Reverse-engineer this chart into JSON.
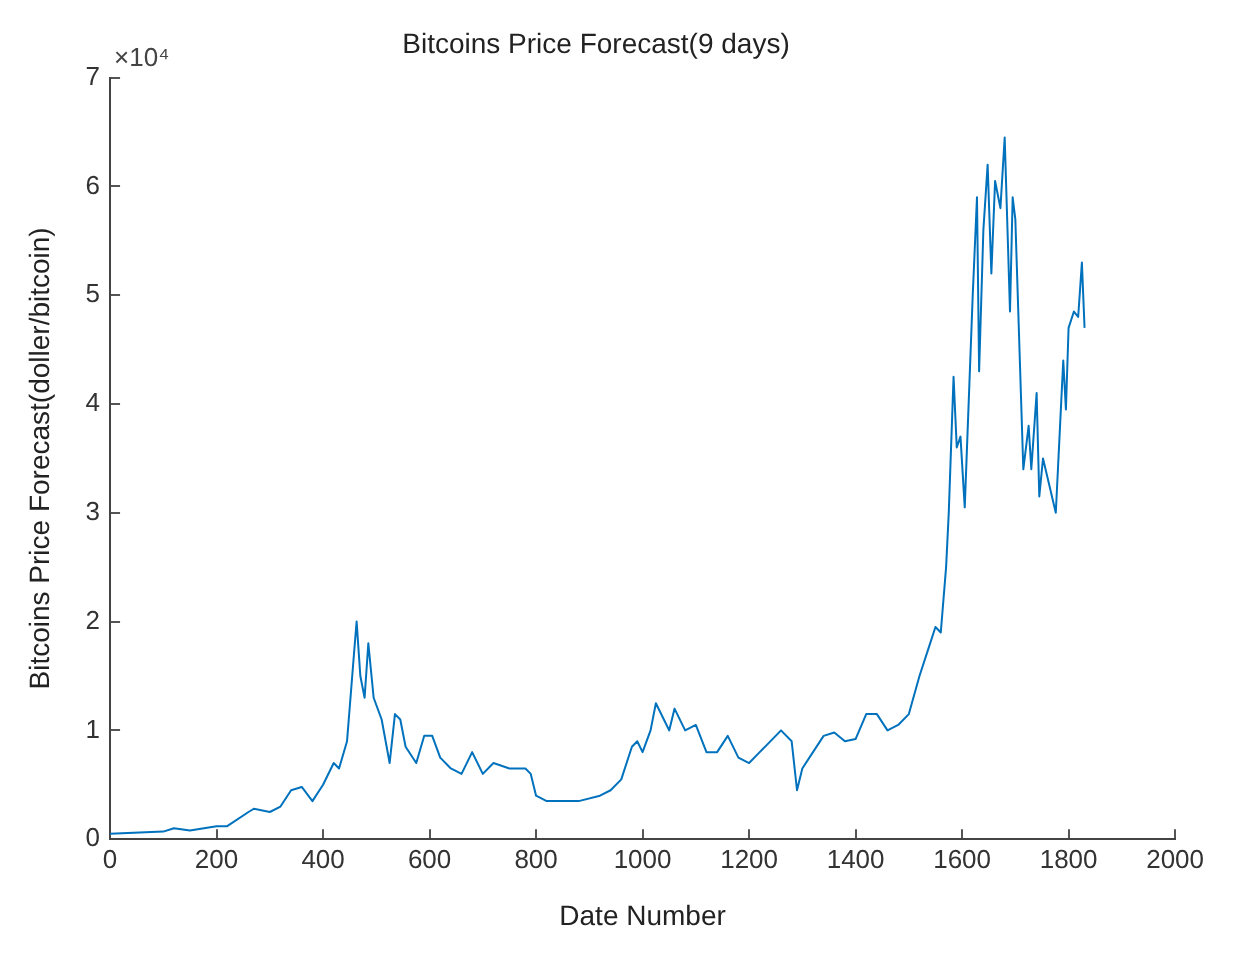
{
  "chart_data": {
    "type": "line",
    "title": "Bitcoins Price Forecast(9 days)",
    "xlabel": "Date Number",
    "ylabel": "Bitcoins Price Forecast(doller/bitcoin)",
    "annotations": [
      "×10⁴"
    ],
    "xlim": [
      0,
      2000
    ],
    "xticks": [
      0,
      200,
      400,
      600,
      800,
      1000,
      1200,
      1400,
      1600,
      1800,
      2000
    ],
    "ylim": [
      0,
      7
    ],
    "yticks": [
      0,
      1,
      2,
      3,
      4,
      5,
      6,
      7
    ],
    "grid": false,
    "legend": false,
    "marker": "none",
    "line_style": "solid",
    "series": [
      {
        "color": "#0072bd",
        "x": [
          0,
          100,
          120,
          150,
          200,
          220,
          260,
          270,
          300,
          320,
          340,
          360,
          380,
          400,
          420,
          430,
          445,
          458,
          463,
          470,
          478,
          485,
          495,
          510,
          525,
          535,
          545,
          555,
          575,
          590,
          605,
          620,
          640,
          660,
          680,
          700,
          720,
          750,
          780,
          790,
          800,
          820,
          840,
          880,
          920,
          940,
          960,
          980,
          990,
          1000,
          1015,
          1025,
          1040,
          1050,
          1060,
          1080,
          1100,
          1120,
          1140,
          1160,
          1180,
          1200,
          1220,
          1250,
          1260,
          1280,
          1290,
          1300,
          1320,
          1340,
          1360,
          1380,
          1400,
          1420,
          1440,
          1460,
          1480,
          1500,
          1520,
          1540,
          1550,
          1560,
          1570,
          1575,
          1584,
          1590,
          1597,
          1605,
          1620,
          1628,
          1632,
          1640,
          1648,
          1655,
          1662,
          1672,
          1680,
          1690,
          1695,
          1700,
          1715,
          1725,
          1730,
          1740,
          1745,
          1752,
          1776,
          1785,
          1790,
          1795,
          1800,
          1810,
          1818,
          1825,
          1830
        ],
        "values": [
          0.05,
          0.07,
          0.1,
          0.08,
          0.12,
          0.12,
          0.25,
          0.28,
          0.25,
          0.3,
          0.45,
          0.48,
          0.35,
          0.5,
          0.7,
          0.65,
          0.9,
          1.7,
          2.0,
          1.5,
          1.3,
          1.8,
          1.3,
          1.1,
          0.7,
          1.15,
          1.1,
          0.85,
          0.7,
          0.95,
          0.95,
          0.75,
          0.65,
          0.6,
          0.8,
          0.6,
          0.7,
          0.65,
          0.65,
          0.6,
          0.4,
          0.35,
          0.35,
          0.35,
          0.4,
          0.45,
          0.55,
          0.85,
          0.9,
          0.8,
          1.0,
          1.25,
          1.1,
          1.0,
          1.2,
          1.0,
          1.05,
          0.8,
          0.8,
          0.95,
          0.75,
          0.7,
          0.8,
          0.95,
          1.0,
          0.9,
          0.45,
          0.65,
          0.8,
          0.95,
          0.98,
          0.9,
          0.92,
          1.15,
          1.15,
          1.0,
          1.05,
          1.15,
          1.5,
          1.8,
          1.95,
          1.9,
          2.5,
          3.0,
          4.25,
          3.6,
          3.7,
          3.05,
          5.0,
          5.9,
          4.3,
          5.6,
          6.2,
          5.2,
          6.05,
          5.8,
          6.45,
          4.85,
          5.9,
          5.7,
          3.4,
          3.8,
          3.4,
          4.1,
          3.15,
          3.5,
          3.0,
          3.9,
          4.4,
          3.95,
          4.7,
          4.85,
          4.8,
          5.3,
          4.7
        ]
      }
    ]
  }
}
